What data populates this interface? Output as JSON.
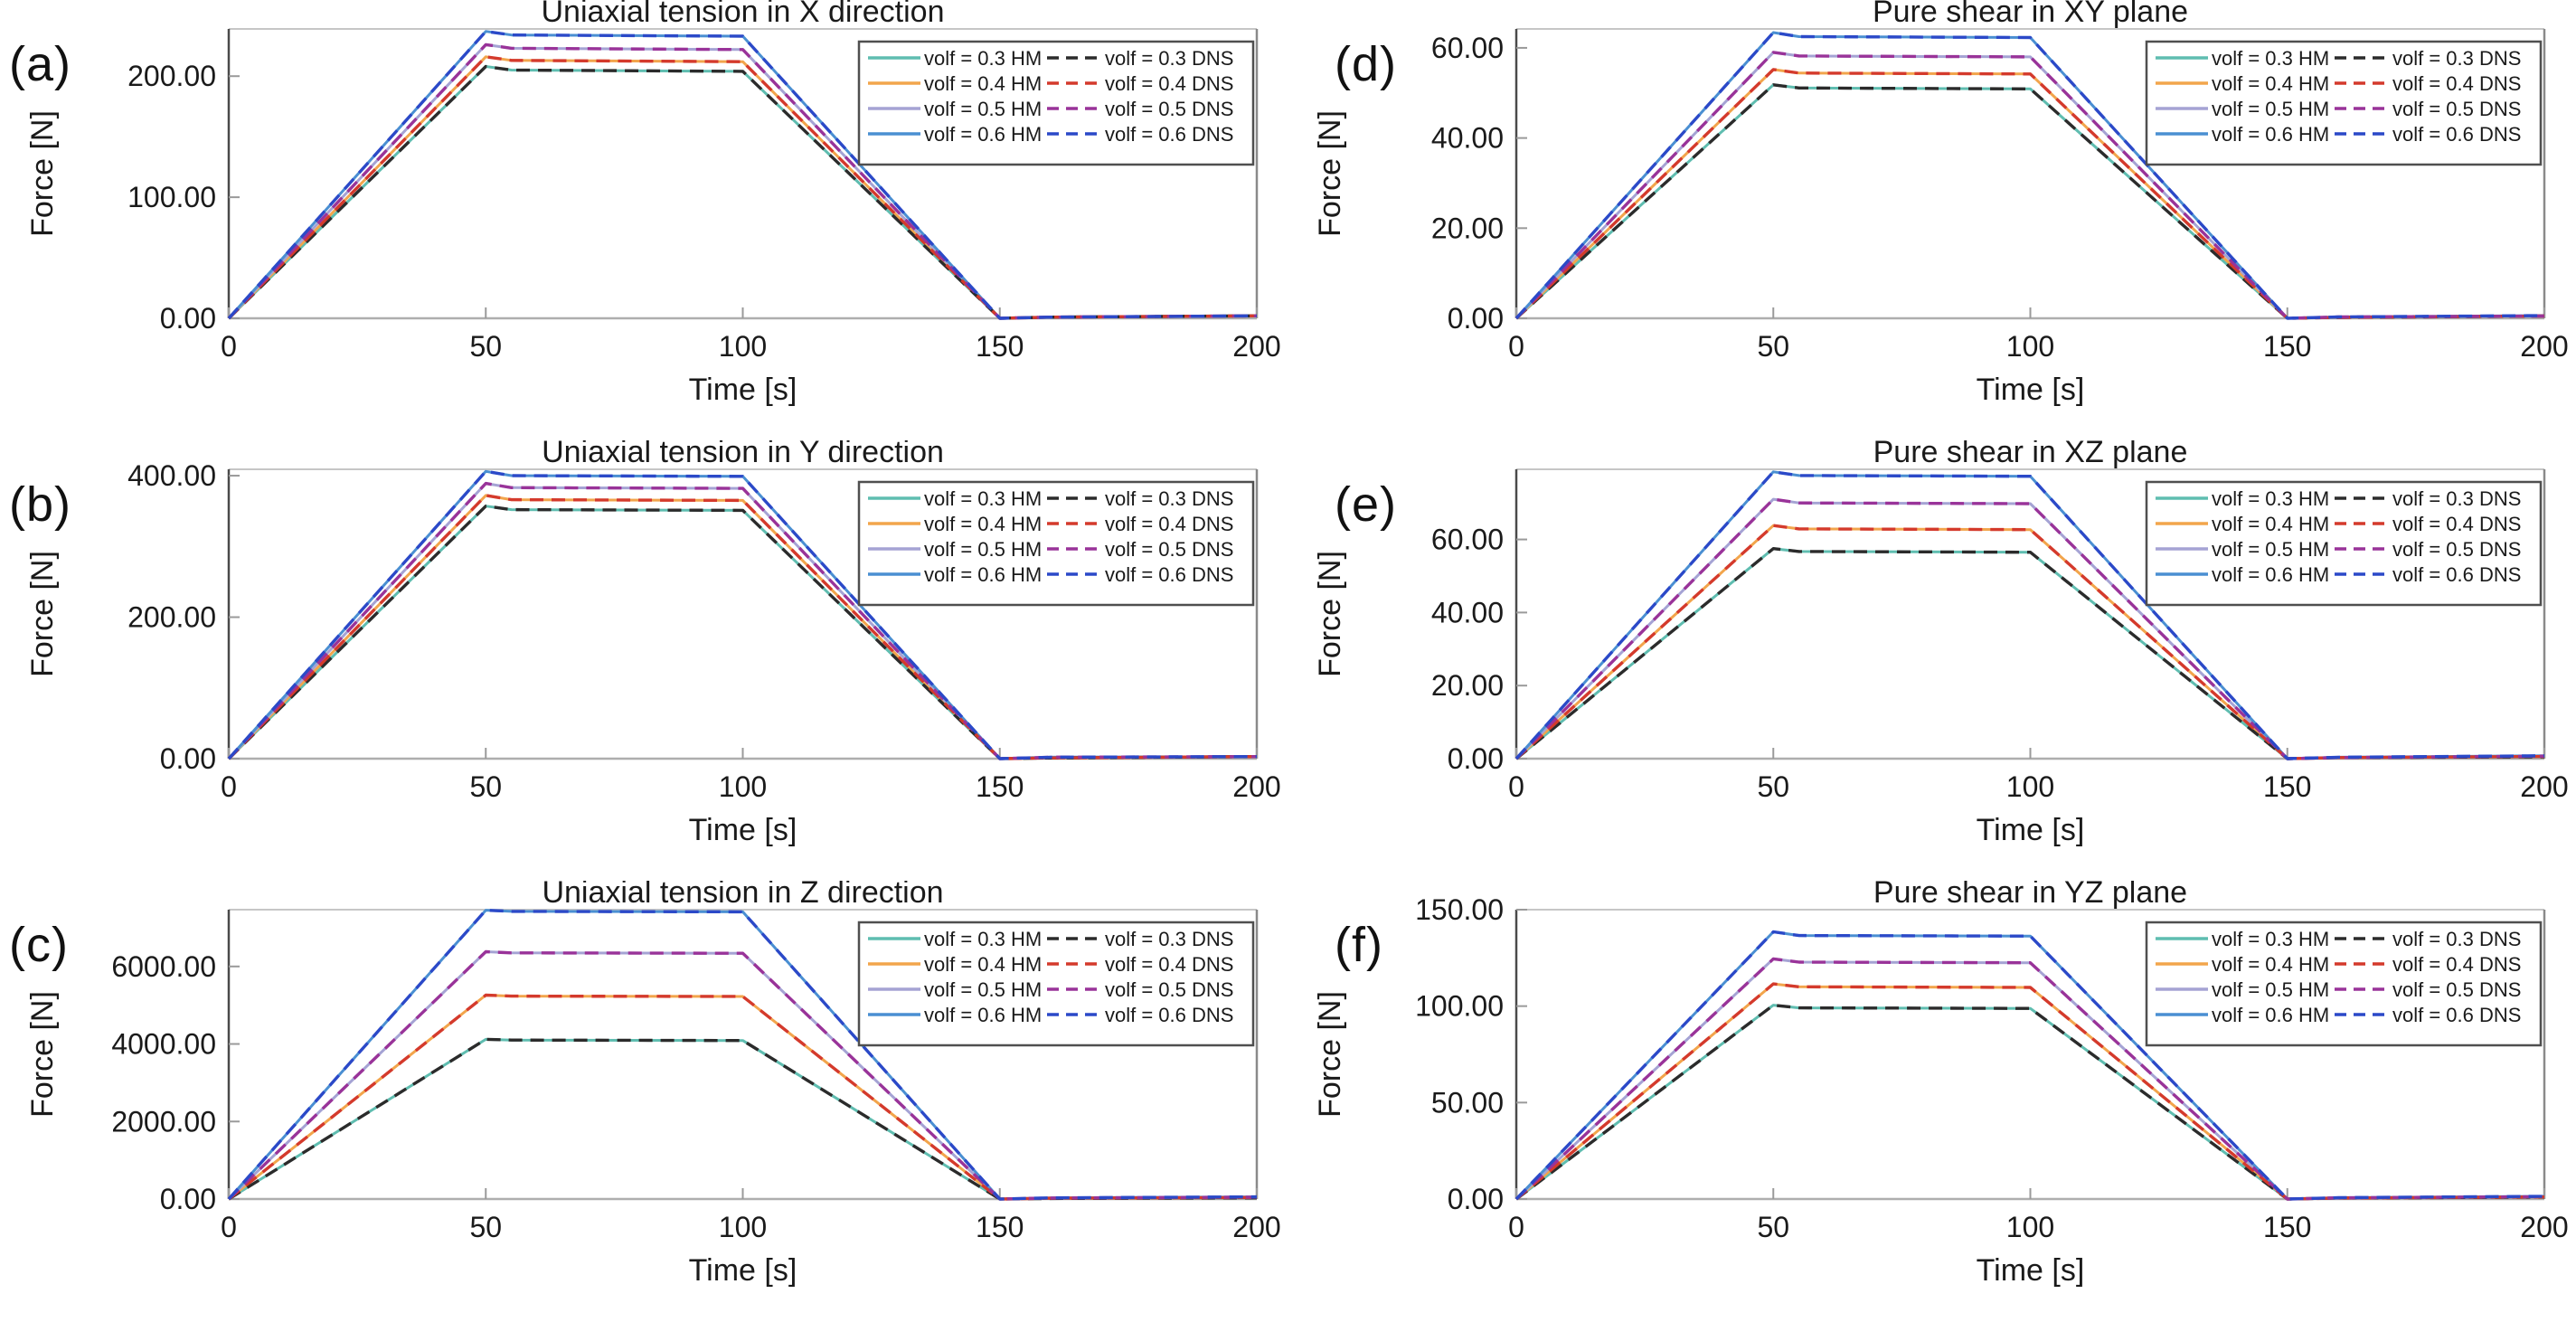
{
  "figure": {
    "background": "#ffffff",
    "series_colors": {
      "hm_03": "#5fbdb0",
      "hm_04": "#f2a54c",
      "hm_05": "#a5a3d4",
      "hm_06": "#4a8fd2",
      "dns_03": "#2b2b2b",
      "dns_04": "#d43a2c",
      "dns_05": "#993399",
      "dns_06": "#2b49c8"
    }
  },
  "chart_data": [
    {
      "panel_label": "(a)",
      "type": "line",
      "title": "Uniaxial tension in X direction",
      "xlabel": "Time [s]",
      "ylabel": "Force [N]",
      "xlim": [
        0,
        200
      ],
      "xticks": [
        0,
        50,
        100,
        150,
        200
      ],
      "ylim": [
        0,
        239
      ],
      "yticks": [
        0,
        100,
        200
      ],
      "grid": false,
      "legend_position": "top-right",
      "time": [
        0,
        50,
        55,
        100,
        150,
        160,
        200
      ],
      "series": [
        {
          "name": "volf = 0.3 HM",
          "color": "#5fbdb0",
          "dash": false,
          "values": [
            0,
            208,
            205,
            204,
            0,
            1,
            2
          ]
        },
        {
          "name": "volf = 0.4 HM",
          "color": "#f2a54c",
          "dash": false,
          "values": [
            0,
            216,
            213,
            212,
            0,
            1,
            2
          ]
        },
        {
          "name": "volf = 0.5 HM",
          "color": "#a5a3d4",
          "dash": false,
          "values": [
            0,
            226,
            223,
            222,
            0,
            1,
            2
          ]
        },
        {
          "name": "volf = 0.6 HM",
          "color": "#4a8fd2",
          "dash": false,
          "values": [
            0,
            237,
            234,
            233,
            0,
            1,
            2
          ]
        },
        {
          "name": "volf = 0.3 DNS",
          "color": "#2b2b2b",
          "dash": true,
          "values": [
            0,
            208,
            205,
            204,
            0,
            1,
            2
          ]
        },
        {
          "name": "volf = 0.4 DNS",
          "color": "#d43a2c",
          "dash": true,
          "values": [
            0,
            216,
            213,
            212,
            0,
            1,
            2
          ]
        },
        {
          "name": "volf = 0.5 DNS",
          "color": "#993399",
          "dash": true,
          "values": [
            0,
            226,
            223,
            222,
            0,
            1,
            2
          ]
        },
        {
          "name": "volf = 0.6 DNS",
          "color": "#2b49c8",
          "dash": true,
          "values": [
            0,
            237,
            234,
            233,
            0,
            1,
            2
          ]
        }
      ]
    },
    {
      "panel_label": "(b)",
      "type": "line",
      "title": "Uniaxial tension in Y direction",
      "xlabel": "Time [s]",
      "ylabel": "Force [N]",
      "xlim": [
        0,
        200
      ],
      "xticks": [
        0,
        50,
        100,
        150,
        200
      ],
      "ylim": [
        0,
        409
      ],
      "yticks": [
        0,
        200,
        400
      ],
      "grid": false,
      "legend_position": "top-right",
      "time": [
        0,
        50,
        55,
        100,
        150,
        160,
        200
      ],
      "series": [
        {
          "name": "volf = 0.3 HM",
          "color": "#5fbdb0",
          "dash": false,
          "values": [
            0,
            357,
            352,
            351,
            0,
            1,
            3
          ]
        },
        {
          "name": "volf = 0.4 HM",
          "color": "#f2a54c",
          "dash": false,
          "values": [
            0,
            372,
            366,
            365,
            0,
            1,
            3
          ]
        },
        {
          "name": "volf = 0.5 HM",
          "color": "#a5a3d4",
          "dash": false,
          "values": [
            0,
            389,
            383,
            382,
            0,
            2,
            3
          ]
        },
        {
          "name": "volf = 0.6 HM",
          "color": "#4a8fd2",
          "dash": false,
          "values": [
            0,
            406,
            400,
            399,
            0,
            2,
            3
          ]
        },
        {
          "name": "volf = 0.3 DNS",
          "color": "#2b2b2b",
          "dash": true,
          "values": [
            0,
            357,
            352,
            351,
            0,
            1,
            3
          ]
        },
        {
          "name": "volf = 0.4 DNS",
          "color": "#d43a2c",
          "dash": true,
          "values": [
            0,
            372,
            366,
            365,
            0,
            1,
            3
          ]
        },
        {
          "name": "volf = 0.5 DNS",
          "color": "#993399",
          "dash": true,
          "values": [
            0,
            389,
            383,
            382,
            0,
            2,
            3
          ]
        },
        {
          "name": "volf = 0.6 DNS",
          "color": "#2b49c8",
          "dash": true,
          "values": [
            0,
            406,
            400,
            399,
            0,
            2,
            3
          ]
        }
      ]
    },
    {
      "panel_label": "(c)",
      "type": "line",
      "title": "Uniaxial tension in Z direction",
      "xlabel": "Time [s]",
      "ylabel": "Force [N]",
      "xlim": [
        0,
        200
      ],
      "xticks": [
        0,
        50,
        100,
        150,
        200
      ],
      "ylim": [
        0,
        7465
      ],
      "yticks": [
        0,
        2000,
        4000,
        6000
      ],
      "grid": false,
      "legend_position": "top-right",
      "time": [
        0,
        50,
        55,
        100,
        150,
        160,
        200
      ],
      "series": [
        {
          "name": "volf = 0.3 HM",
          "color": "#5fbdb0",
          "dash": false,
          "values": [
            0,
            4120,
            4100,
            4090,
            0,
            15,
            30
          ]
        },
        {
          "name": "volf = 0.4 HM",
          "color": "#f2a54c",
          "dash": false,
          "values": [
            0,
            5260,
            5235,
            5225,
            0,
            20,
            40
          ]
        },
        {
          "name": "volf = 0.5 HM",
          "color": "#a5a3d4",
          "dash": false,
          "values": [
            0,
            6380,
            6350,
            6340,
            0,
            25,
            50
          ]
        },
        {
          "name": "volf = 0.6 HM",
          "color": "#4a8fd2",
          "dash": false,
          "values": [
            0,
            7450,
            7420,
            7410,
            0,
            30,
            55
          ]
        },
        {
          "name": "volf = 0.3 DNS",
          "color": "#2b2b2b",
          "dash": true,
          "values": [
            0,
            4120,
            4100,
            4090,
            0,
            15,
            30
          ]
        },
        {
          "name": "volf = 0.4 DNS",
          "color": "#d43a2c",
          "dash": true,
          "values": [
            0,
            5260,
            5235,
            5225,
            0,
            20,
            40
          ]
        },
        {
          "name": "volf = 0.5 DNS",
          "color": "#993399",
          "dash": true,
          "values": [
            0,
            6380,
            6350,
            6340,
            0,
            25,
            50
          ]
        },
        {
          "name": "volf = 0.6 DNS",
          "color": "#2b49c8",
          "dash": true,
          "values": [
            0,
            7450,
            7420,
            7410,
            0,
            30,
            55
          ]
        }
      ]
    },
    {
      "panel_label": "(d)",
      "type": "line",
      "title": "Pure shear in XY plane",
      "xlabel": "Time [s]",
      "ylabel": "Force [N]",
      "xlim": [
        0,
        200
      ],
      "xticks": [
        0,
        50,
        100,
        150,
        200
      ],
      "ylim": [
        0,
        64.2
      ],
      "yticks": [
        0,
        20,
        40,
        60
      ],
      "grid": false,
      "legend_position": "top-right",
      "time": [
        0,
        50,
        55,
        100,
        150,
        160,
        200
      ],
      "series": [
        {
          "name": "volf = 0.3 HM",
          "color": "#5fbdb0",
          "dash": false,
          "values": [
            0,
            51.8,
            51.1,
            50.9,
            0,
            0.2,
            0.5
          ]
        },
        {
          "name": "volf = 0.4 HM",
          "color": "#f2a54c",
          "dash": false,
          "values": [
            0,
            55.2,
            54.4,
            54.2,
            0,
            0.2,
            0.5
          ]
        },
        {
          "name": "volf = 0.5 HM",
          "color": "#a5a3d4",
          "dash": false,
          "values": [
            0,
            59.0,
            58.2,
            58.0,
            0,
            0.3,
            0.5
          ]
        },
        {
          "name": "volf = 0.6 HM",
          "color": "#4a8fd2",
          "dash": false,
          "values": [
            0,
            63.4,
            62.5,
            62.3,
            0,
            0.3,
            0.6
          ]
        },
        {
          "name": "volf = 0.3 DNS",
          "color": "#2b2b2b",
          "dash": true,
          "values": [
            0,
            51.8,
            51.1,
            50.9,
            0,
            0.2,
            0.5
          ]
        },
        {
          "name": "volf = 0.4 DNS",
          "color": "#d43a2c",
          "dash": true,
          "values": [
            0,
            55.2,
            54.4,
            54.2,
            0,
            0.2,
            0.5
          ]
        },
        {
          "name": "volf = 0.5 DNS",
          "color": "#993399",
          "dash": true,
          "values": [
            0,
            59.0,
            58.2,
            58.0,
            0,
            0.3,
            0.5
          ]
        },
        {
          "name": "volf = 0.6 DNS",
          "color": "#2b49c8",
          "dash": true,
          "values": [
            0,
            63.4,
            62.5,
            62.3,
            0,
            0.3,
            0.6
          ]
        }
      ]
    },
    {
      "panel_label": "(e)",
      "type": "line",
      "title": "Pure shear in XZ plane",
      "xlabel": "Time [s]",
      "ylabel": "Force [N]",
      "xlim": [
        0,
        200
      ],
      "xticks": [
        0,
        50,
        100,
        150,
        200
      ],
      "ylim": [
        0,
        79.2
      ],
      "yticks": [
        0,
        20,
        40,
        60
      ],
      "grid": false,
      "legend_position": "top-right",
      "time": [
        0,
        50,
        55,
        100,
        150,
        160,
        200
      ],
      "series": [
        {
          "name": "volf = 0.3 HM",
          "color": "#5fbdb0",
          "dash": false,
          "values": [
            0,
            57.5,
            56.7,
            56.5,
            0,
            0.3,
            0.5
          ]
        },
        {
          "name": "volf = 0.4 HM",
          "color": "#f2a54c",
          "dash": false,
          "values": [
            0,
            63.8,
            62.9,
            62.7,
            0,
            0.3,
            0.6
          ]
        },
        {
          "name": "volf = 0.5 HM",
          "color": "#a5a3d4",
          "dash": false,
          "values": [
            0,
            71.0,
            70.0,
            69.8,
            0,
            0.3,
            0.7
          ]
        },
        {
          "name": "volf = 0.6 HM",
          "color": "#4a8fd2",
          "dash": false,
          "values": [
            0,
            78.5,
            77.5,
            77.3,
            0,
            0.4,
            0.8
          ]
        },
        {
          "name": "volf = 0.3 DNS",
          "color": "#2b2b2b",
          "dash": true,
          "values": [
            0,
            57.5,
            56.7,
            56.5,
            0,
            0.3,
            0.5
          ]
        },
        {
          "name": "volf = 0.4 DNS",
          "color": "#d43a2c",
          "dash": true,
          "values": [
            0,
            63.8,
            62.9,
            62.7,
            0,
            0.3,
            0.6
          ]
        },
        {
          "name": "volf = 0.5 DNS",
          "color": "#993399",
          "dash": true,
          "values": [
            0,
            71.0,
            70.0,
            69.8,
            0,
            0.3,
            0.7
          ]
        },
        {
          "name": "volf = 0.6 DNS",
          "color": "#2b49c8",
          "dash": true,
          "values": [
            0,
            78.5,
            77.5,
            77.3,
            0,
            0.4,
            0.8
          ]
        }
      ]
    },
    {
      "panel_label": "(f)",
      "type": "line",
      "title": "Pure shear in YZ plane",
      "xlabel": "Time [s]",
      "ylabel": "Force [N]",
      "xlim": [
        0,
        200
      ],
      "xticks": [
        0,
        50,
        100,
        150,
        200
      ],
      "ylim": [
        0,
        150
      ],
      "yticks": [
        0,
        50,
        100,
        150
      ],
      "grid": false,
      "legend_position": "top-right",
      "time": [
        0,
        50,
        55,
        100,
        150,
        160,
        200
      ],
      "series": [
        {
          "name": "volf = 0.3 HM",
          "color": "#5fbdb0",
          "dash": false,
          "values": [
            0,
            100.5,
            99.1,
            98.8,
            0,
            0.5,
            1.0
          ]
        },
        {
          "name": "volf = 0.4 HM",
          "color": "#f2a54c",
          "dash": false,
          "values": [
            0,
            111.5,
            110.0,
            109.7,
            0,
            0.5,
            1.1
          ]
        },
        {
          "name": "volf = 0.5 HM",
          "color": "#a5a3d4",
          "dash": false,
          "values": [
            0,
            124.5,
            122.8,
            122.5,
            0,
            0.6,
            1.2
          ]
        },
        {
          "name": "volf = 0.6 HM",
          "color": "#4a8fd2",
          "dash": false,
          "values": [
            0,
            138.5,
            136.6,
            136.3,
            0,
            0.7,
            1.4
          ]
        },
        {
          "name": "volf = 0.3 DNS",
          "color": "#2b2b2b",
          "dash": true,
          "values": [
            0,
            100.5,
            99.1,
            98.8,
            0,
            0.5,
            1.0
          ]
        },
        {
          "name": "volf = 0.4 DNS",
          "color": "#d43a2c",
          "dash": true,
          "values": [
            0,
            111.5,
            110.0,
            109.7,
            0,
            0.5,
            1.1
          ]
        },
        {
          "name": "volf = 0.5 DNS",
          "color": "#993399",
          "dash": true,
          "values": [
            0,
            124.5,
            122.8,
            122.5,
            0,
            0.6,
            1.2
          ]
        },
        {
          "name": "volf = 0.6 DNS",
          "color": "#2b49c8",
          "dash": true,
          "values": [
            0,
            138.5,
            136.6,
            136.3,
            0,
            0.7,
            1.4
          ]
        }
      ]
    }
  ]
}
